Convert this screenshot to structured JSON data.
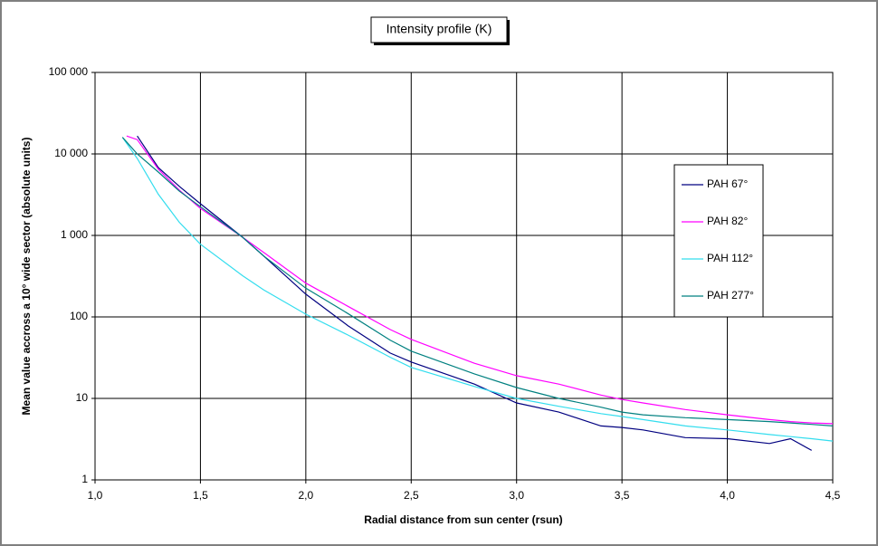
{
  "chart_data": {
    "type": "line",
    "title": "Intensity profile (K)",
    "x_label": "Radial distance from sun center (rsun)",
    "y_label": "Mean value accross a 10° wide sector (absolute units)",
    "x": [
      1.13,
      1.15,
      1.2,
      1.3,
      1.4,
      1.5,
      1.7,
      1.8,
      2.0,
      2.2,
      2.4,
      2.5,
      2.8,
      3.0,
      3.2,
      3.4,
      3.5,
      3.6,
      3.8,
      4.0,
      4.2,
      4.3,
      4.4,
      4.5
    ],
    "series": [
      {
        "name": "PAH 67°",
        "color": "#000080",
        "values": [
          null,
          null,
          16600,
          6800,
          4000,
          2450,
          950,
          560,
          190,
          78,
          36,
          28,
          15,
          8.8,
          6.8,
          4.6,
          4.4,
          4.1,
          3.3,
          3.2,
          2.8,
          3.2,
          2.3,
          null
        ]
      },
      {
        "name": "PAH 82°",
        "color": "#ff00ff",
        "values": [
          null,
          16600,
          15000,
          6500,
          3600,
          2150,
          950,
          620,
          260,
          135,
          70,
          53,
          27,
          19,
          15,
          11,
          9.7,
          8.8,
          7.3,
          6.3,
          5.5,
          5.2,
          5.0,
          4.9
        ]
      },
      {
        "name": "PAH 112°",
        "color": "#33ddee",
        "values": [
          16000,
          13500,
          8800,
          3200,
          1450,
          780,
          320,
          215,
          108,
          60,
          32,
          24,
          14,
          10,
          8,
          6.5,
          6,
          5.5,
          4.6,
          4.1,
          3.6,
          3.4,
          3.2,
          3.0
        ]
      },
      {
        "name": "PAH 277°",
        "color": "#008080",
        "values": [
          16000,
          14000,
          10000,
          6000,
          3500,
          2250,
          950,
          560,
          225,
          110,
          52,
          38,
          20,
          13.6,
          10,
          7.8,
          6.8,
          6.3,
          5.8,
          5.5,
          5.2,
          5.0,
          4.8,
          4.6
        ]
      }
    ],
    "xlim": [
      1,
      4.5
    ],
    "xticks": [
      {
        "value": 1,
        "label": "1,0"
      },
      {
        "value": 1.5,
        "label": "1,5"
      },
      {
        "value": 2,
        "label": "2,0"
      },
      {
        "value": 2.5,
        "label": "2,5"
      },
      {
        "value": 3,
        "label": "3,0"
      },
      {
        "value": 3.5,
        "label": "3,5"
      },
      {
        "value": 4,
        "label": "4,0"
      },
      {
        "value": 4.5,
        "label": "4,5"
      }
    ],
    "ylim": [
      1,
      100000
    ],
    "yticks": [
      1,
      10,
      100,
      {
        "value": 1000,
        "label": "1 000"
      },
      {
        "value": 10000,
        "label": "10 000"
      },
      {
        "value": 100000,
        "label": "100 000"
      }
    ],
    "y_scale": "log",
    "grid": true,
    "legend": "right"
  }
}
